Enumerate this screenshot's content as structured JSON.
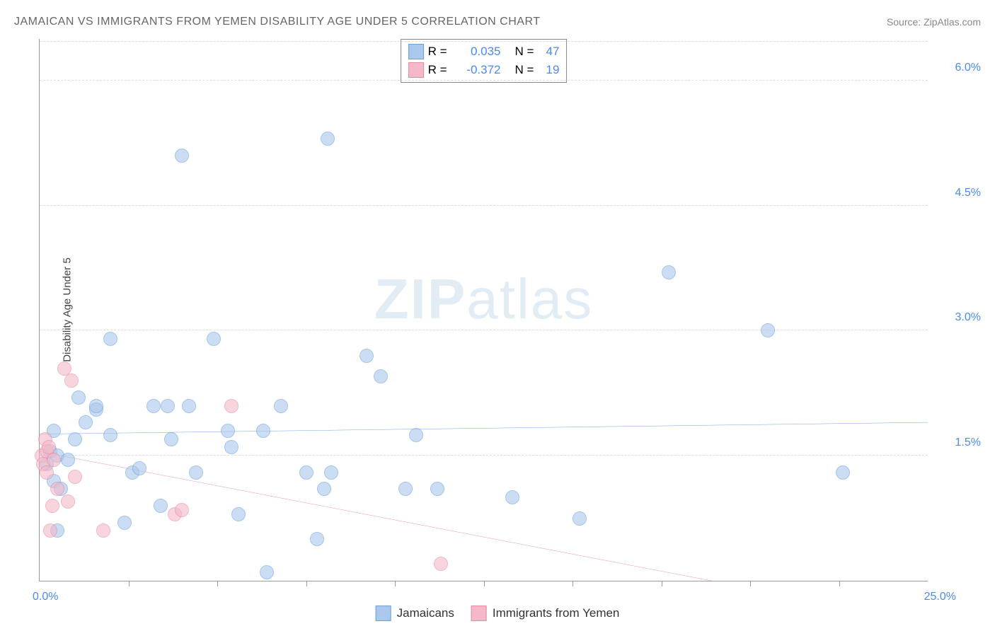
{
  "title": "JAMAICAN VS IMMIGRANTS FROM YEMEN DISABILITY AGE UNDER 5 CORRELATION CHART",
  "source": "Source: ZipAtlas.com",
  "watermark_bold": "ZIP",
  "watermark_light": "atlas",
  "ylabel": "Disability Age Under 5",
  "chart": {
    "type": "scatter",
    "background_color": "#ffffff",
    "grid_color": "#dddddd",
    "axis_color": "#999999",
    "xlim": [
      0,
      25
    ],
    "ylim": [
      0,
      6.5
    ],
    "xticks": [
      2.5,
      5,
      7.5,
      10,
      12.5,
      15,
      17.5,
      20,
      22.5
    ],
    "yticks": [
      {
        "v": 1.5,
        "label": "1.5%",
        "color": "#4a8af4"
      },
      {
        "v": 3.0,
        "label": "3.0%",
        "color": "#4a8af4"
      },
      {
        "v": 4.5,
        "label": "4.5%",
        "color": "#4a8af4"
      },
      {
        "v": 6.0,
        "label": "6.0%",
        "color": "#4a8af4"
      }
    ],
    "x_min_label": "0.0%",
    "x_max_label": "25.0%",
    "x_label_color": "#4a8af4",
    "marker_radius": 10,
    "series": [
      {
        "name": "Jamaicans",
        "fill_color": "#a9c8ec",
        "stroke_color": "#6b9fdd",
        "fill_opacity": 0.6,
        "trend_color": "#2f7ce0",
        "trend_y_start": 1.76,
        "trend_y_end": 1.9,
        "stats": {
          "R": "0.035",
          "N": "47"
        },
        "points": [
          [
            0.2,
            1.4
          ],
          [
            0.3,
            1.55
          ],
          [
            0.4,
            1.2
          ],
          [
            0.4,
            1.8
          ],
          [
            0.5,
            1.5
          ],
          [
            0.5,
            0.6
          ],
          [
            0.6,
            1.1
          ],
          [
            0.8,
            1.45
          ],
          [
            1.0,
            1.7
          ],
          [
            1.1,
            2.2
          ],
          [
            1.3,
            1.9
          ],
          [
            1.6,
            2.05
          ],
          [
            1.6,
            2.1
          ],
          [
            2.0,
            2.9
          ],
          [
            2.0,
            1.75
          ],
          [
            2.4,
            0.7
          ],
          [
            2.6,
            1.3
          ],
          [
            2.8,
            1.35
          ],
          [
            3.2,
            2.1
          ],
          [
            3.4,
            0.9
          ],
          [
            3.6,
            2.1
          ],
          [
            3.7,
            1.7
          ],
          [
            4.0,
            5.1
          ],
          [
            4.2,
            2.1
          ],
          [
            4.4,
            1.3
          ],
          [
            4.9,
            2.9
          ],
          [
            5.3,
            1.8
          ],
          [
            5.4,
            1.6
          ],
          [
            5.6,
            0.8
          ],
          [
            6.3,
            1.8
          ],
          [
            6.4,
            0.1
          ],
          [
            6.8,
            2.1
          ],
          [
            7.5,
            1.3
          ],
          [
            7.8,
            0.5
          ],
          [
            8.0,
            1.1
          ],
          [
            8.1,
            5.3
          ],
          [
            8.2,
            1.3
          ],
          [
            9.2,
            2.7
          ],
          [
            9.6,
            2.45
          ],
          [
            10.3,
            1.1
          ],
          [
            10.6,
            1.75
          ],
          [
            11.2,
            1.1
          ],
          [
            13.3,
            1.0
          ],
          [
            15.2,
            0.75
          ],
          [
            17.7,
            3.7
          ],
          [
            20.5,
            3.0
          ],
          [
            22.6,
            1.3
          ]
        ]
      },
      {
        "name": "Immigrants from Yemen",
        "fill_color": "#f4b8c8",
        "stroke_color": "#e88aa5",
        "fill_opacity": 0.6,
        "trend_color": "#e36690",
        "trend_y_start": 1.55,
        "trend_y_end": -0.5,
        "stats": {
          "R": "-0.372",
          "N": "19"
        },
        "points": [
          [
            0.05,
            1.5
          ],
          [
            0.1,
            1.4
          ],
          [
            0.15,
            1.7
          ],
          [
            0.2,
            1.55
          ],
          [
            0.2,
            1.3
          ],
          [
            0.25,
            1.6
          ],
          [
            0.3,
            0.6
          ],
          [
            0.35,
            0.9
          ],
          [
            0.4,
            1.45
          ],
          [
            0.5,
            1.1
          ],
          [
            0.7,
            2.55
          ],
          [
            0.8,
            0.95
          ],
          [
            0.9,
            2.4
          ],
          [
            1.0,
            1.25
          ],
          [
            1.8,
            0.6
          ],
          [
            3.8,
            0.8
          ],
          [
            4.0,
            0.85
          ],
          [
            5.4,
            2.1
          ],
          [
            11.3,
            0.2
          ]
        ]
      }
    ],
    "stats_label_R": "R  =",
    "stats_label_N": "N  =",
    "stats_value_color": "#4a8af4"
  }
}
